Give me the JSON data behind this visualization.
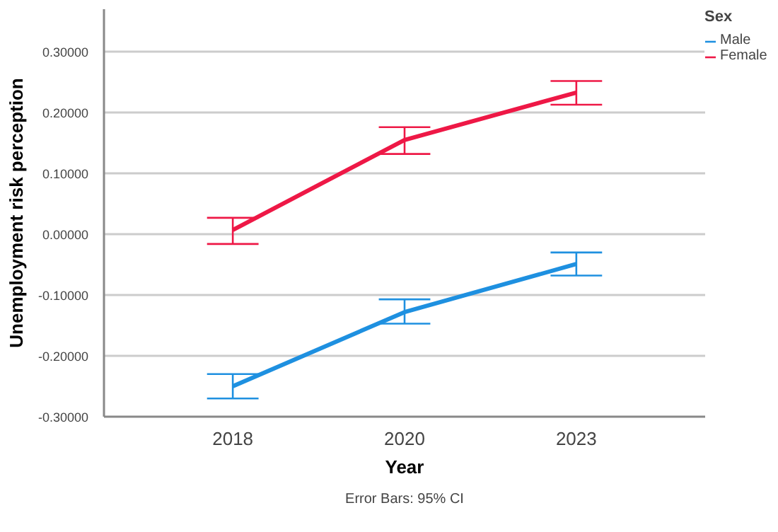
{
  "chart_data": {
    "type": "line",
    "xlabel": "Year",
    "ylabel": "Unemployment risk perception",
    "legend_title": "Sex",
    "categories": [
      "2018",
      "2020",
      "2023"
    ],
    "series": [
      {
        "name": "Male",
        "color": "#1e90e0",
        "values": [
          -0.25,
          -0.128,
          -0.049
        ],
        "errors": [
          [
            -0.27,
            -0.23
          ],
          [
            -0.147,
            -0.107
          ],
          [
            -0.068,
            -0.03
          ]
        ]
      },
      {
        "name": "Female",
        "color": "#ee1846",
        "values": [
          0.007,
          0.155,
          0.233
        ],
        "errors": [
          [
            -0.016,
            0.027
          ],
          [
            0.132,
            0.176
          ],
          [
            0.213,
            0.252
          ]
        ]
      }
    ],
    "ylim": [
      -0.3,
      0.37
    ],
    "yticks": [
      {
        "value": -0.3,
        "label": "-0.30000"
      },
      {
        "value": -0.2,
        "label": "-0.20000"
      },
      {
        "value": -0.1,
        "label": "-0.10000"
      },
      {
        "value": 0,
        "label": "0.00000"
      },
      {
        "value": 0.1,
        "label": "0.10000"
      },
      {
        "value": 0.2,
        "label": "0.20000"
      },
      {
        "value": 0.3,
        "label": "0.30000"
      }
    ],
    "grid": "y",
    "legend": "top right",
    "marker": "none",
    "line_style": "solid",
    "annotations": [
      "Error Bars: 95% CI"
    ]
  }
}
